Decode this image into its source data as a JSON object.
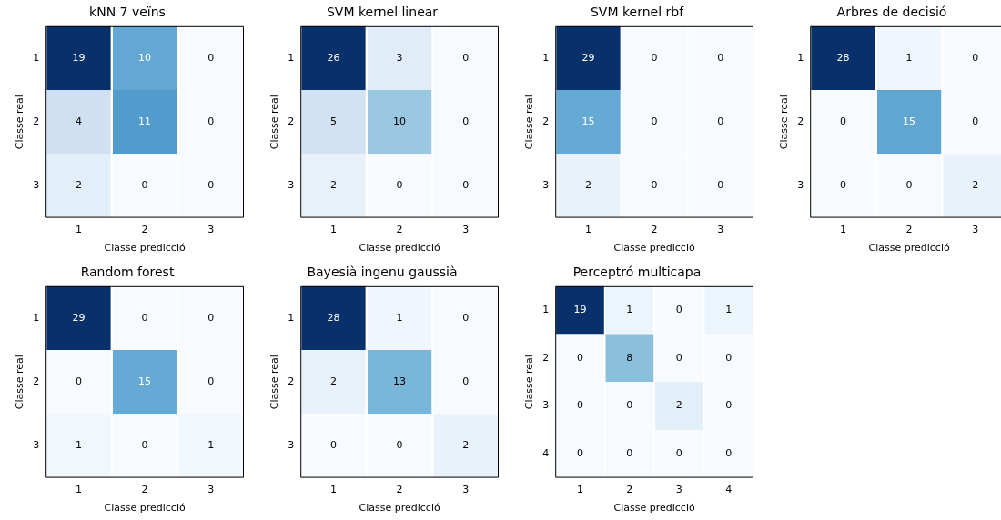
{
  "chart_data": [
    {
      "type": "heatmap",
      "title": "kNN 7 veïns",
      "xlabel": "Classe predicció",
      "ylabel": "Classe real",
      "categories": [
        "1",
        "2",
        "3"
      ],
      "y_categories": [
        "1",
        "2",
        "3"
      ],
      "cells": [
        [
          19,
          10,
          0
        ],
        [
          4,
          11,
          0
        ],
        [
          2,
          0,
          0
        ]
      ],
      "data_labels": true
    },
    {
      "type": "heatmap",
      "title": "SVM kernel linear",
      "xlabel": "Classe predicció",
      "ylabel": "Classe real",
      "categories": [
        "1",
        "2",
        "3"
      ],
      "y_categories": [
        "1",
        "2",
        "3"
      ],
      "cells": [
        [
          26,
          3,
          0
        ],
        [
          5,
          10,
          0
        ],
        [
          2,
          0,
          0
        ]
      ],
      "data_labels": true
    },
    {
      "type": "heatmap",
      "title": "SVM kernel rbf",
      "xlabel": "Classe predicció",
      "ylabel": "Classe real",
      "categories": [
        "1",
        "2",
        "3"
      ],
      "y_categories": [
        "1",
        "2",
        "3"
      ],
      "cells": [
        [
          29,
          0,
          0
        ],
        [
          15,
          0,
          0
        ],
        [
          2,
          0,
          0
        ]
      ],
      "data_labels": true
    },
    {
      "type": "heatmap",
      "title": "Arbres de decisió",
      "xlabel": "Classe predicció",
      "ylabel": "Classe real",
      "categories": [
        "1",
        "2",
        "3"
      ],
      "y_categories": [
        "1",
        "2",
        "3"
      ],
      "cells": [
        [
          28,
          1,
          0
        ],
        [
          0,
          15,
          0
        ],
        [
          0,
          0,
          2
        ]
      ],
      "data_labels": true
    },
    {
      "type": "heatmap",
      "title": "Random forest",
      "xlabel": "Classe predicció",
      "ylabel": "Classe real",
      "categories": [
        "1",
        "2",
        "3"
      ],
      "y_categories": [
        "1",
        "2",
        "3"
      ],
      "cells": [
        [
          29,
          0,
          0
        ],
        [
          0,
          15,
          0
        ],
        [
          1,
          0,
          1
        ]
      ],
      "data_labels": true
    },
    {
      "type": "heatmap",
      "title": "Bayesià ingenu gaussià",
      "xlabel": "Classe predicció",
      "ylabel": "Classe real",
      "categories": [
        "1",
        "2",
        "3"
      ],
      "y_categories": [
        "1",
        "2",
        "3"
      ],
      "cells": [
        [
          28,
          1,
          0
        ],
        [
          2,
          13,
          0
        ],
        [
          0,
          0,
          2
        ]
      ],
      "data_labels": true
    },
    {
      "type": "heatmap",
      "title": "Perceptró multicapa",
      "xlabel": "Classe predicció",
      "ylabel": "Classe real",
      "categories": [
        "1",
        "2",
        "3",
        "4"
      ],
      "y_categories": [
        "1",
        "2",
        "3",
        "4"
      ],
      "cells": [
        [
          19,
          1,
          0,
          1
        ],
        [
          0,
          8,
          0,
          0
        ],
        [
          0,
          0,
          2,
          0
        ],
        [
          0,
          0,
          0,
          0
        ]
      ],
      "data_labels": true
    }
  ]
}
